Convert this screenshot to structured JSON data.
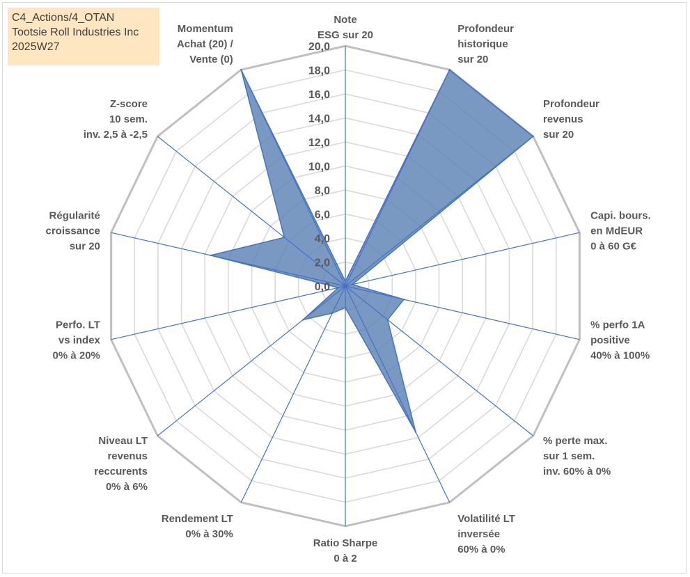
{
  "info": {
    "line1": "C4_Actions/4_OTAN",
    "line2": "Tootsie Roll Industries Inc",
    "line3": "2025W27"
  },
  "chart_data": {
    "type": "radar",
    "title": "",
    "rmin": 0,
    "rmax": 20,
    "rticks": [
      "0,0",
      "2,0",
      "4,0",
      "6,0",
      "8,0",
      "10,0",
      "12,0",
      "14,0",
      "16,0",
      "18,0",
      "20,0"
    ],
    "categories": [
      [
        "Note",
        "ESG sur 20"
      ],
      [
        "Profondeur",
        "historique",
        "sur 20"
      ],
      [
        "Profondeur",
        "revenus",
        "sur 20"
      ],
      [
        "Capi. bours.",
        "en MdEUR",
        "0 à 60 G€"
      ],
      [
        "% perfo 1A",
        "positive",
        "40% à 100%"
      ],
      [
        "% perte max.",
        "sur 1 sem.",
        "inv. 60% à 0%"
      ],
      [
        "Volatilité LT",
        "inversée",
        "60% à 0%"
      ],
      [
        "Ratio Sharpe",
        "0 à 2"
      ],
      [
        "Rendement LT",
        "0% à 30%"
      ],
      [
        "Niveau LT",
        "revenus",
        "reccurents",
        "0% à 6%"
      ],
      [
        "Perfo. LT",
        "vs index",
        "0% à 20%"
      ],
      [
        "Régularité",
        "croissance",
        "sur 20"
      ],
      [
        "Z-score",
        "10 sem.",
        "inv. 2,5 à -2,5"
      ],
      [
        "Momentum",
        "Achat (20) /",
        "Vente (0)"
      ]
    ],
    "series": [
      {
        "values": [
          0.4,
          20,
          20,
          0.6,
          5,
          4.5,
          13.5,
          1.8,
          2.5,
          4.5,
          0.6,
          11.5,
          6.5,
          20
        ]
      }
    ],
    "colors": {
      "fill": "#5b82b5",
      "stroke": "#4472c4",
      "spoke": "#4472c4",
      "grid_outer": "#bfbfbf",
      "grid_inner": "#d9d9d9"
    },
    "grid": true,
    "legend": "none"
  }
}
